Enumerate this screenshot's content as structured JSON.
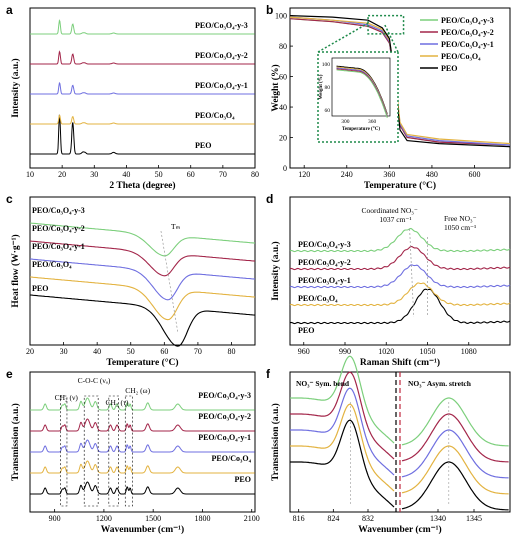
{
  "colors": {
    "PEO": "#000000",
    "PEO/Co3O4": "#e3b341",
    "PEO/Co3O4-y-1": "#6f6fe0",
    "PEO/Co3O4-y-2": "#a3264a",
    "PEO/Co3O4-y-3": "#7ccf7c",
    "inset_box": "#1e8a4a"
  },
  "series_names": [
    "PEO",
    "PEO/Co₃O₄",
    "PEO/Co₃O₄-y-1",
    "PEO/Co₃O₄-y-2",
    "PEO/Co₃O₄-y-3"
  ],
  "chart_data": [
    {
      "id": "a",
      "panel": "a",
      "type": "line",
      "xlabel": "2 Theta (degree)",
      "ylabel": "Intensity (a.u.)",
      "xlim": [
        10,
        80
      ],
      "xticks": [
        "10",
        "20",
        "30",
        "40",
        "50",
        "60",
        "70",
        "80"
      ],
      "legend": [
        "PEO/Co₃O₄-y-3",
        "PEO/Co₃O₄-y-2",
        "PEO/Co₃O₄-y-1",
        "PEO/Co₃O₄",
        "PEO"
      ],
      "peaks_2theta": [
        19.2,
        23.3
      ],
      "series": [
        {
          "name": "PEO",
          "offset": 0,
          "peak_heights": [
            1.0,
            0.8
          ]
        },
        {
          "name": "PEO/Co3O4",
          "offset": 1,
          "peak_heights": [
            0.35,
            0.3
          ]
        },
        {
          "name": "PEO/Co3O4-y-1",
          "offset": 2,
          "peak_heights": [
            0.45,
            0.35
          ]
        },
        {
          "name": "PEO/Co3O4-y-2",
          "offset": 3,
          "peak_heights": [
            0.5,
            0.4
          ]
        },
        {
          "name": "PEO/Co3O4-y-3",
          "offset": 4,
          "peak_heights": [
            0.55,
            0.4
          ]
        }
      ]
    },
    {
      "id": "b",
      "panel": "b",
      "type": "line",
      "xlabel": "Temperature (°C)",
      "ylabel": "Weight (%)",
      "xlim": [
        80,
        700
      ],
      "ylim": [
        0,
        105
      ],
      "xticks": [
        "120",
        "240",
        "360",
        "480",
        "600"
      ],
      "yticks": [
        "0",
        "20",
        "40",
        "60",
        "80",
        "100"
      ],
      "legend": [
        "PEO/Co₃O₄-y-3",
        "PEO/Co₃O₄-y-2",
        "PEO/Co₃O₄-y-1",
        "PEO/Co₃O₄",
        "PEO"
      ],
      "inset": {
        "xlabel": "Temperature (°C)",
        "ylabel": "Weight (%)",
        "xticks": [
          "300",
          "360"
        ],
        "yticks": [
          "60",
          "80",
          "100"
        ]
      },
      "series": [
        {
          "name": "PEO",
          "x": [
            80,
            200,
            300,
            340,
            360,
            375,
            390,
            410,
            500,
            700
          ],
          "y": [
            100,
            99,
            97,
            92,
            85,
            60,
            25,
            18,
            16,
            14
          ]
        },
        {
          "name": "PEO/Co3O4",
          "x": [
            80,
            200,
            300,
            340,
            360,
            375,
            390,
            410,
            500,
            700
          ],
          "y": [
            99,
            97,
            95,
            91,
            84,
            62,
            30,
            22,
            19,
            16
          ]
        },
        {
          "name": "PEO/Co3O4-y-1",
          "x": [
            80,
            200,
            300,
            340,
            360,
            375,
            390,
            410,
            500,
            700
          ],
          "y": [
            99,
            97,
            94,
            90,
            83,
            61,
            29,
            21,
            18,
            15
          ]
        },
        {
          "name": "PEO/Co3O4-y-2",
          "x": [
            80,
            200,
            300,
            340,
            360,
            375,
            390,
            410,
            500,
            700
          ],
          "y": [
            98,
            96,
            93,
            89,
            82,
            60,
            28,
            20,
            17,
            15
          ]
        },
        {
          "name": "PEO/Co3O4-y-3",
          "x": [
            80,
            200,
            300,
            340,
            360,
            375,
            390,
            410,
            500,
            700
          ],
          "y": [
            98,
            96,
            93,
            89,
            82,
            60,
            28,
            20,
            17,
            15
          ]
        }
      ]
    },
    {
      "id": "c",
      "panel": "c",
      "type": "line",
      "xlabel": "Temperature (°C)",
      "ylabel": "Heat flow (W·g⁻¹)",
      "xlim": [
        20,
        87
      ],
      "xticks": [
        "20",
        "30",
        "40",
        "50",
        "60",
        "70",
        "80"
      ],
      "annotation": "Tₘ",
      "series": [
        {
          "name": "PEO",
          "offset": 0,
          "valley_x": 64,
          "depth": 1.0
        },
        {
          "name": "PEO/Co3O4",
          "offset": 1,
          "valley_x": 61,
          "depth": 0.8
        },
        {
          "name": "PEO/Co3O4-y-1",
          "offset": 2,
          "valley_x": 61,
          "depth": 0.75
        },
        {
          "name": "PEO/Co3O4-y-2",
          "offset": 3,
          "valley_x": 60,
          "depth": 0.6
        },
        {
          "name": "PEO/Co3O4-y-3",
          "offset": 4,
          "valley_x": 60,
          "depth": 0.55
        }
      ]
    },
    {
      "id": "d",
      "panel": "d",
      "type": "line",
      "xlabel": "Raman Shift (cm⁻¹)",
      "ylabel": "Intensity (a.u.)",
      "xlim": [
        950,
        1110
      ],
      "xticks": [
        "960",
        "990",
        "1020",
        "1050",
        "1080"
      ],
      "annotations": [
        "Coordinated NO₃⁻",
        "1037 cm⁻¹",
        "Free NO₃⁻",
        "1050 cm⁻¹"
      ],
      "series": [
        {
          "name": "PEO",
          "offset": 0,
          "peak_x": 1050
        },
        {
          "name": "PEO/Co3O4",
          "offset": 1,
          "peak_x": 1045
        },
        {
          "name": "PEO/Co3O4-y-1",
          "offset": 2,
          "peak_x": 1040
        },
        {
          "name": "PEO/Co3O4-y-2",
          "offset": 3,
          "peak_x": 1039
        },
        {
          "name": "PEO/Co3O4-y-3",
          "offset": 4,
          "peak_x": 1037
        }
      ]
    },
    {
      "id": "e",
      "panel": "e",
      "type": "line",
      "xlabel": "Wavenumber (cm⁻¹)",
      "ylabel": "Transmission (a.u.)",
      "xlim": [
        750,
        2120
      ],
      "xticks": [
        "900",
        "1200",
        "1500",
        "1800",
        "2100"
      ],
      "annotations": [
        "C-O-C (νₐ)",
        "CH₂ (ν)",
        "CH₂ (τ)",
        "CH₂ (ω)"
      ],
      "band_x": [
        840,
        962,
        1060,
        1148,
        1240,
        1280,
        1340,
        1360,
        1467,
        1650
      ],
      "series": [
        {
          "name": "PEO",
          "offset": 0
        },
        {
          "name": "PEO/Co3O4",
          "offset": 1
        },
        {
          "name": "PEO/Co3O4-y-1",
          "offset": 2
        },
        {
          "name": "PEO/Co3O4-y-2",
          "offset": 3
        },
        {
          "name": "PEO/Co3O4-y-3",
          "offset": 4
        }
      ]
    },
    {
      "id": "f",
      "panel": "f",
      "type": "line",
      "xlabel": "Wavenumber (cm⁻¹)",
      "ylabel": "Transmission (a.u.)",
      "left_xlim": [
        814,
        838
      ],
      "right_xlim": [
        1335,
        1350
      ],
      "left_xticks": [
        "816",
        "824",
        "832"
      ],
      "right_xticks": [
        "1340",
        "1345"
      ],
      "left_title": "NO₃⁻ Sym. bend",
      "right_title": "NO₃⁻ Asym. stretch",
      "left_valley": 828,
      "right_valley": 1341.5,
      "series": [
        {
          "name": "PEO",
          "offset": 0
        },
        {
          "name": "PEO/Co3O4",
          "offset": 1
        },
        {
          "name": "PEO/Co3O4-y-1",
          "offset": 2
        },
        {
          "name": "PEO/Co3O4-y-2",
          "offset": 3
        },
        {
          "name": "PEO/Co3O4-y-3",
          "offset": 4
        }
      ]
    }
  ]
}
